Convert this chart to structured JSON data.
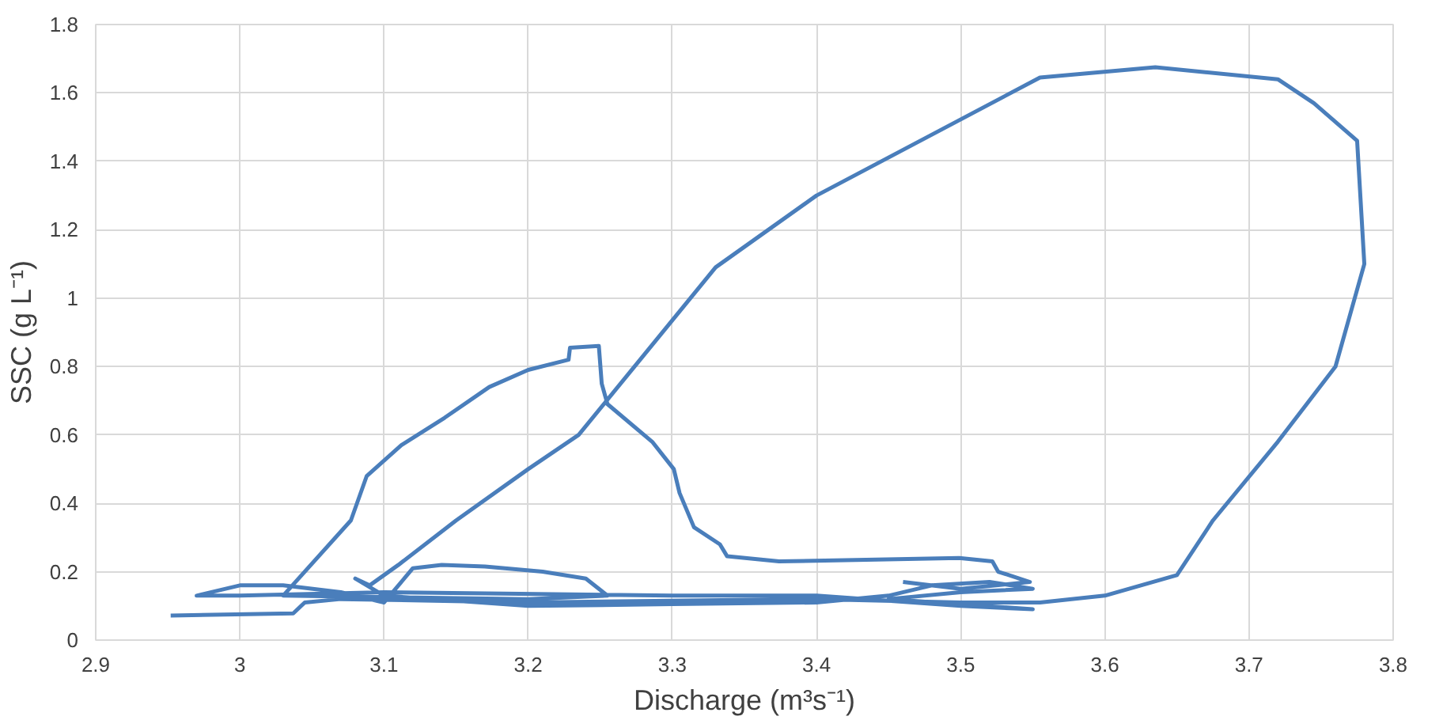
{
  "chart_data": {
    "type": "line",
    "xlabel": "Discharge (m³s⁻¹)",
    "ylabel": "SSC (g L⁻¹)",
    "xlim": [
      2.9,
      3.8
    ],
    "ylim": [
      0,
      1.8
    ],
    "xticks": [
      2.9,
      3,
      3.1,
      3.2,
      3.3,
      3.4,
      3.5,
      3.6,
      3.7,
      3.8
    ],
    "yticks": [
      0,
      0.2,
      0.4,
      0.6,
      0.8,
      1,
      1.2,
      1.4,
      1.6,
      1.8
    ],
    "grid": true,
    "marker": "none",
    "line_style": "solid",
    "series": [
      {
        "color": "#4a7ebb",
        "x": [
          2.952,
          3.037,
          3.045,
          3.07,
          3.2,
          3.3,
          3.4,
          3.5,
          3.555,
          3.6,
          3.65,
          3.675,
          3.72,
          3.76,
          3.78,
          3.775,
          3.745,
          3.72,
          3.635,
          3.555,
          3.4,
          3.33,
          3.235,
          3.2,
          3.15,
          3.11,
          3.09,
          3.08,
          3.1,
          3.2,
          3.3,
          3.4,
          3.45,
          3.48,
          3.52,
          3.55,
          3.5,
          3.45,
          3.55,
          3.5,
          3.4,
          3.3,
          3.1,
          3.0,
          2.97,
          3.0,
          3.03,
          3.07,
          3.1,
          3.12,
          3.14,
          3.17,
          3.21,
          3.24,
          3.255,
          3.2,
          3.03,
          3.077,
          3.088,
          3.112,
          3.142,
          3.173,
          3.2,
          3.228,
          3.229,
          3.249,
          3.251,
          3.255,
          3.286,
          3.301,
          3.305,
          3.315,
          3.333,
          3.338,
          3.374,
          3.499,
          3.522,
          3.526,
          3.548,
          3.5,
          3.46
        ],
        "values": [
          0.072,
          0.078,
          0.11,
          0.12,
          0.11,
          0.115,
          0.12,
          0.11,
          0.11,
          0.13,
          0.19,
          0.35,
          0.58,
          0.8,
          1.1,
          1.46,
          1.57,
          1.64,
          1.675,
          1.645,
          1.3,
          1.09,
          0.6,
          0.5,
          0.35,
          0.22,
          0.16,
          0.18,
          0.13,
          0.1,
          0.105,
          0.11,
          0.13,
          0.16,
          0.17,
          0.15,
          0.14,
          0.12,
          0.09,
          0.1,
          0.13,
          0.13,
          0.14,
          0.13,
          0.13,
          0.16,
          0.16,
          0.14,
          0.11,
          0.21,
          0.22,
          0.215,
          0.2,
          0.18,
          0.13,
          0.12,
          0.13,
          0.35,
          0.48,
          0.57,
          0.65,
          0.74,
          0.79,
          0.82,
          0.855,
          0.86,
          0.75,
          0.69,
          0.58,
          0.5,
          0.43,
          0.33,
          0.28,
          0.245,
          0.23,
          0.24,
          0.23,
          0.2,
          0.17,
          0.15,
          0.17
        ]
      }
    ]
  }
}
